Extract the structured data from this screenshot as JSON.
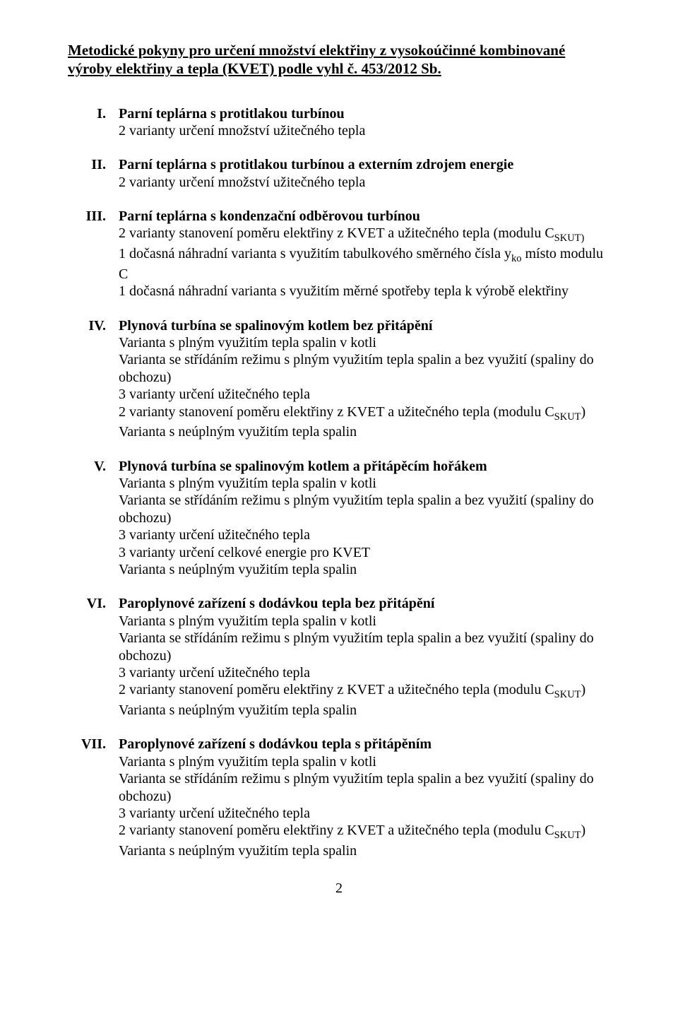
{
  "title": "Metodické pokyny pro určení množství elektřiny z vysokoúčinné kombinované výroby elektřiny a tepla (KVET) podle vyhl č. 453/2012 Sb.",
  "items": [
    {
      "roman": "I.",
      "head": "Parní teplárna s protitlakou turbínou",
      "lines": [
        "2 varianty určení množství užitečného tepla"
      ]
    },
    {
      "roman": "II.",
      "head": "Parní teplárna s protitlakou turbínou a externím zdrojem energie",
      "lines": [
        "2 varianty určení množství užitečného tepla"
      ]
    },
    {
      "roman": "III.",
      "head": "Parní teplárna s kondenzační odběrovou turbínou",
      "lines": [
        "2 varianty stanovení poměru elektřiny z KVET a užitečného tepla (modulu C{SKUT)}",
        "1 dočasná náhradní varianta s využitím tabulkového směrného čísla y{ko} místo modulu C",
        "1 dočasná náhradní varianta s využitím měrné spotřeby tepla k výrobě elektřiny"
      ]
    },
    {
      "roman": "IV.",
      "head": "Plynová turbína se spalinovým kotlem bez přitápění",
      "lines": [
        "Varianta s plným využitím tepla spalin v kotli",
        "Varianta se střídáním režimu s plným využitím tepla spalin a bez využití (spaliny do obchozu)",
        "3 varianty určení užitečného tepla",
        "2 varianty stanovení poměru elektřiny z KVET a užitečného tepla (modulu C{SKUT})",
        "Varianta s neúplným využitím tepla spalin"
      ]
    },
    {
      "roman": "V.",
      "head": "Plynová turbína se spalinovým kotlem a přitápěcím hořákem",
      "lines": [
        "Varianta s plným využitím tepla spalin v kotli",
        "Varianta se střídáním režimu s plným využitím tepla spalin a bez využití (spaliny do obchozu)",
        "3 varianty určení užitečného tepla",
        "3 varianty určení celkové energie pro KVET",
        "Varianta s neúplným využitím tepla spalin"
      ]
    },
    {
      "roman": "VI.",
      "head": "Paroplynové zařízení s dodávkou tepla bez přitápění",
      "lines": [
        "Varianta s plným využitím tepla spalin v kotli",
        "Varianta se střídáním režimu s plným využitím tepla spalin a bez využití (spaliny do obchozu)",
        "3 varianty určení užitečného tepla",
        "2 varianty stanovení poměru elektřiny z KVET a užitečného tepla (modulu C{SKUT})",
        "Varianta s neúplným využitím tepla spalin"
      ]
    },
    {
      "roman": "VII.",
      "head": "Paroplynové zařízení s dodávkou tepla s přitápěním",
      "lines": [
        "Varianta s plným využitím tepla spalin v kotli",
        "Varianta se střídáním režimu s plným využitím tepla spalin a bez využití (spaliny do obchozu)",
        "3 varianty určení užitečného tepla",
        "2 varianty stanovení poměru elektřiny z KVET a užitečného tepla (modulu C{SKUT})",
        "Varianta s neúplným využitím tepla spalin"
      ]
    }
  ],
  "page_number": "2"
}
